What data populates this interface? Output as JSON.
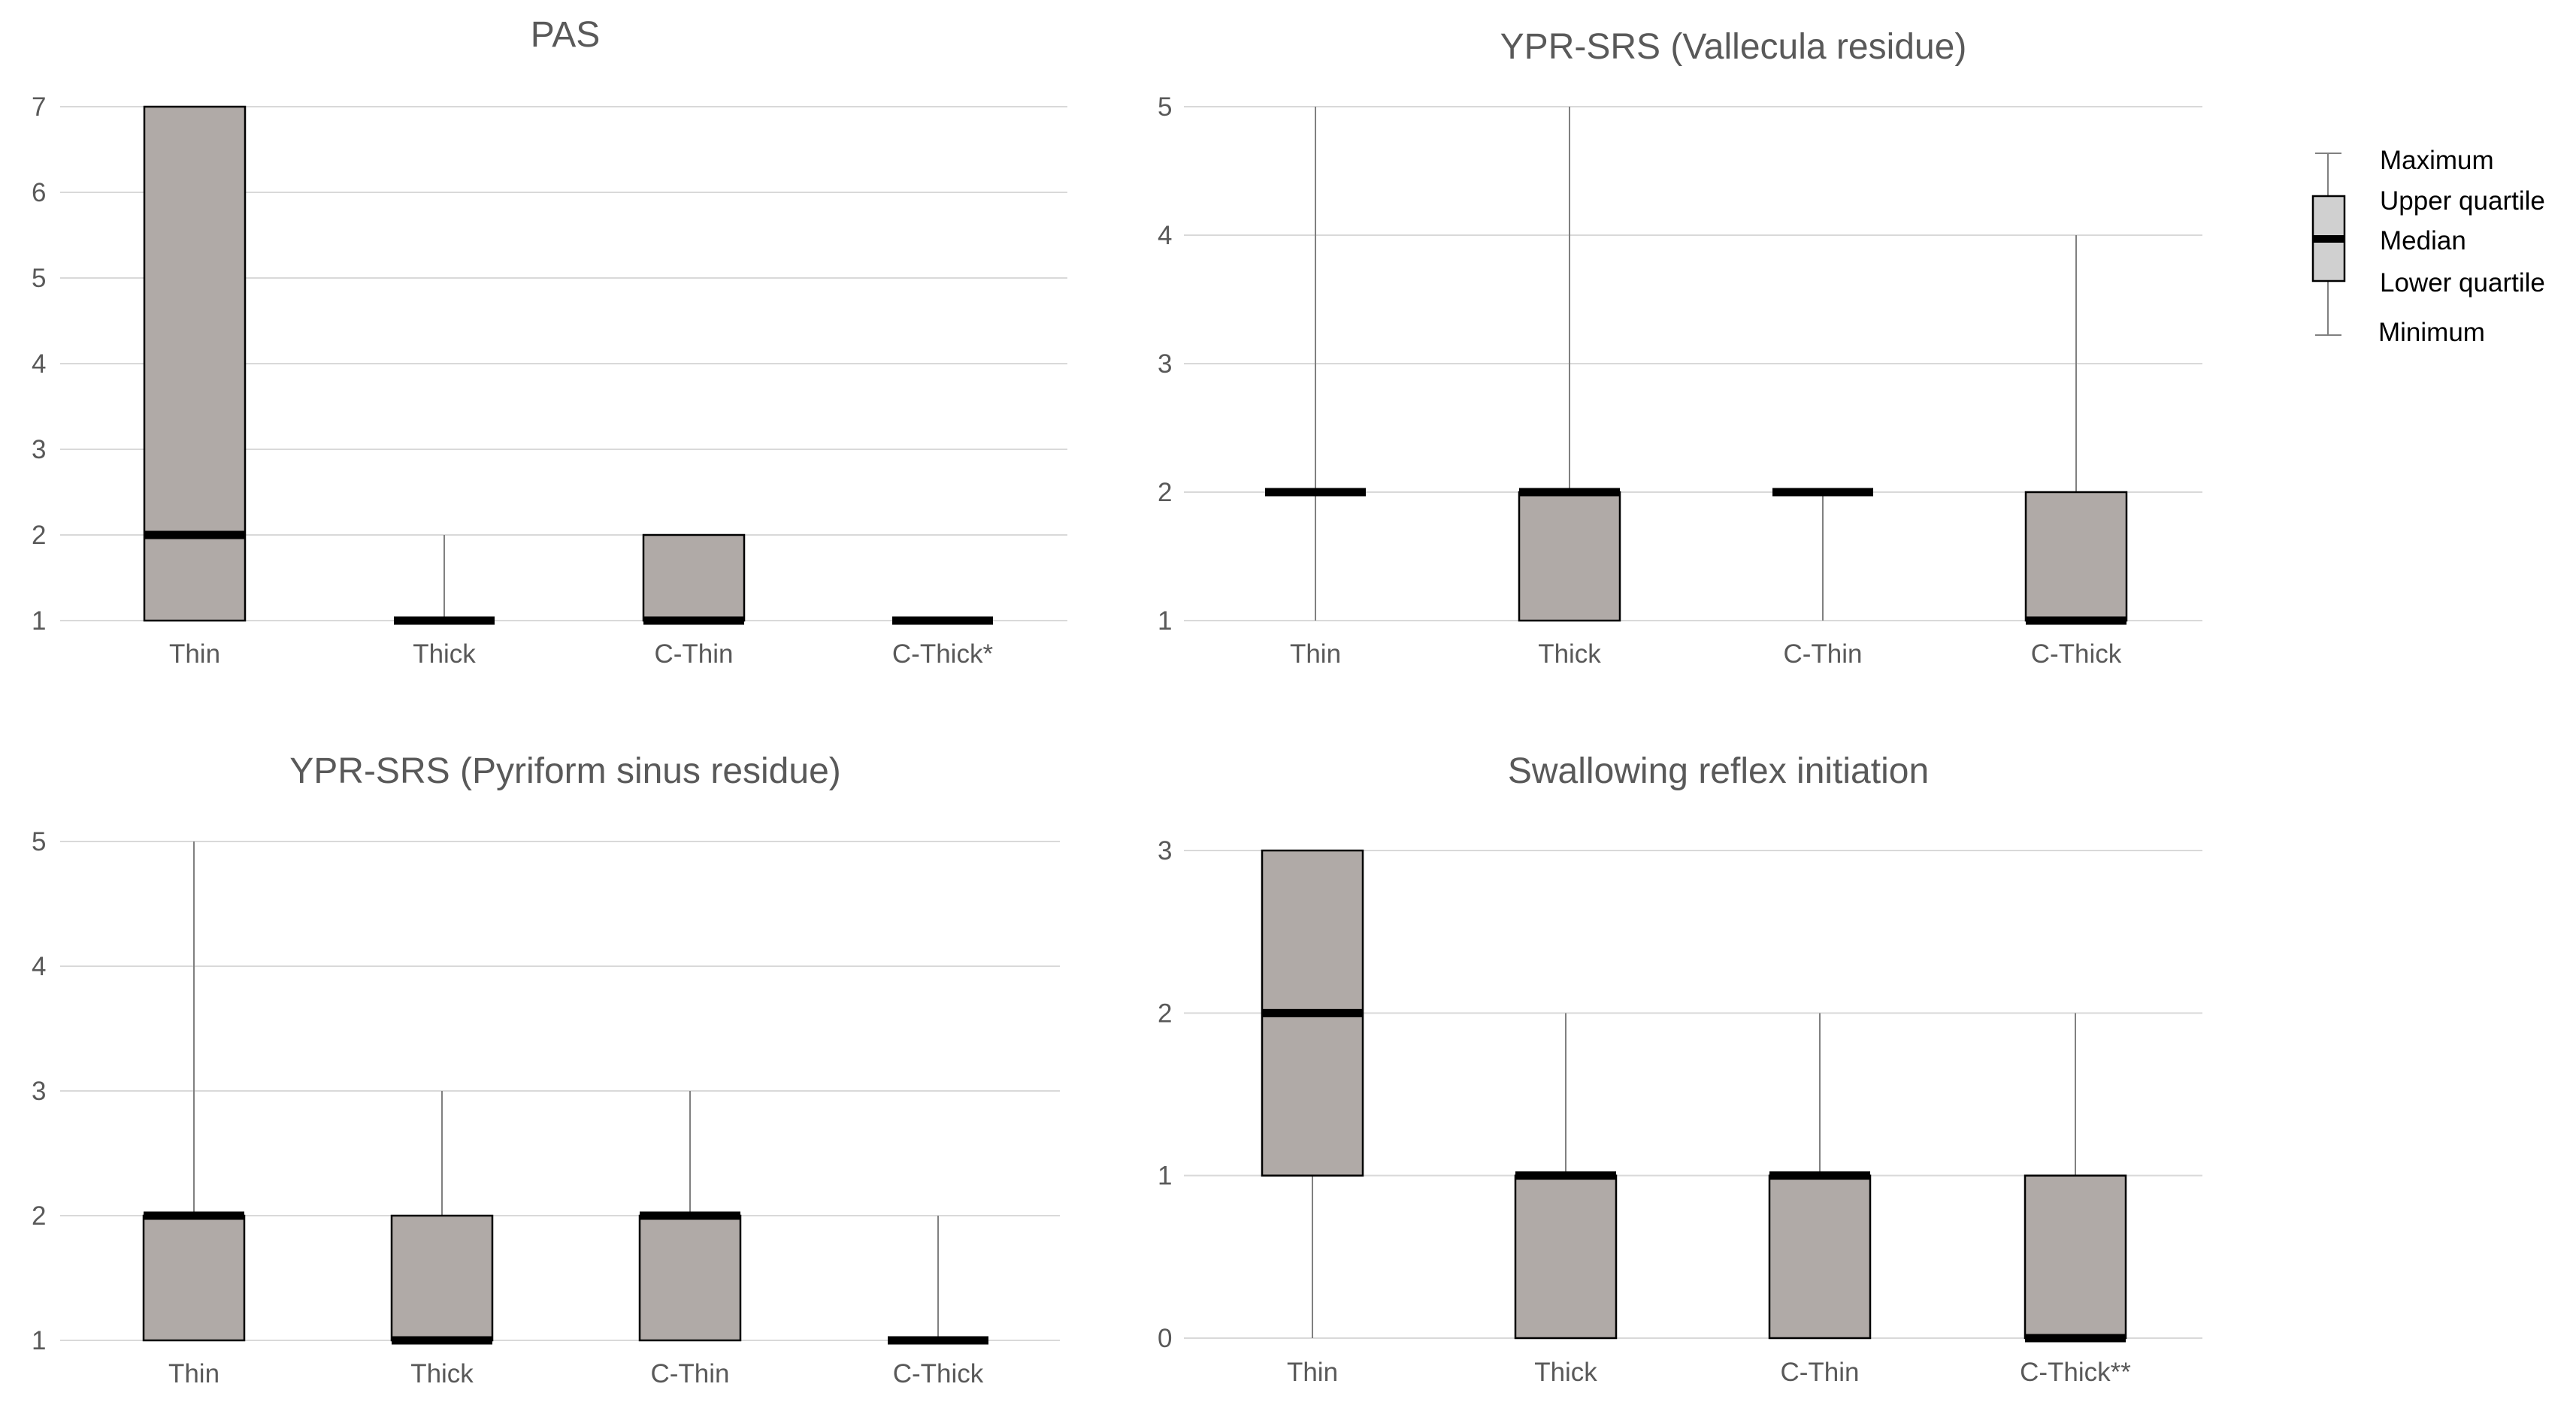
{
  "chart_data": [
    {
      "type": "box",
      "title": "PAS",
      "ylim": [
        1,
        7
      ],
      "yticks": [
        1,
        2,
        3,
        4,
        5,
        6,
        7
      ],
      "categories": [
        "Thin",
        "Thick",
        "C-Thin",
        "C-Thick*"
      ],
      "boxes": [
        {
          "min": 1,
          "q1": 1,
          "median": 2,
          "q3": 7,
          "max": 7
        },
        {
          "min": 1,
          "q1": 1,
          "median": 1,
          "q3": 1,
          "max": 2
        },
        {
          "min": 1,
          "q1": 1,
          "median": 1,
          "q3": 2,
          "max": 2
        },
        {
          "min": 1,
          "q1": 1,
          "median": 1,
          "q3": 1,
          "max": 1
        }
      ]
    },
    {
      "type": "box",
      "title": "YPR-SRS (Vallecula residue)",
      "ylim": [
        1,
        5
      ],
      "yticks": [
        1,
        2,
        3,
        4,
        5
      ],
      "categories": [
        "Thin",
        "Thick",
        "C-Thin",
        "C-Thick"
      ],
      "boxes": [
        {
          "min": 1,
          "q1": 2,
          "median": 2,
          "q3": 2,
          "max": 5
        },
        {
          "min": 1,
          "q1": 1,
          "median": 2,
          "q3": 2,
          "max": 5
        },
        {
          "min": 1,
          "q1": 2,
          "median": 2,
          "q3": 2,
          "max": 2
        },
        {
          "min": 1,
          "q1": 1,
          "median": 1,
          "q3": 2,
          "max": 4
        }
      ]
    },
    {
      "type": "box",
      "title": "YPR-SRS (Pyriform sinus residue)",
      "ylim": [
        1,
        5
      ],
      "yticks": [
        1,
        2,
        3,
        4,
        5
      ],
      "categories": [
        "Thin",
        "Thick",
        "C-Thin",
        "C-Thick"
      ],
      "boxes": [
        {
          "min": 1,
          "q1": 1,
          "median": 2,
          "q3": 2,
          "max": 5
        },
        {
          "min": 1,
          "q1": 1,
          "median": 1,
          "q3": 2,
          "max": 3
        },
        {
          "min": 1,
          "q1": 1,
          "median": 2,
          "q3": 2,
          "max": 3
        },
        {
          "min": 1,
          "q1": 1,
          "median": 1,
          "q3": 1,
          "max": 2
        }
      ]
    },
    {
      "type": "box",
      "title": "Swallowing reflex initiation",
      "ylim": [
        0,
        3
      ],
      "yticks": [
        0,
        1,
        2,
        3
      ],
      "categories": [
        "Thin",
        "Thick",
        "C-Thin",
        "C-Thick**"
      ],
      "boxes": [
        {
          "min": 0,
          "q1": 1,
          "median": 2,
          "q3": 3,
          "max": 3
        },
        {
          "min": 0,
          "q1": 0,
          "median": 1,
          "q3": 1,
          "max": 2
        },
        {
          "min": 0,
          "q1": 0,
          "median": 1,
          "q3": 1,
          "max": 2
        },
        {
          "min": 0,
          "q1": 0,
          "median": 0,
          "q3": 1,
          "max": 2
        }
      ]
    }
  ],
  "legend": {
    "maximum": "Maximum",
    "upper_quartile": "Upper quartile",
    "median": "Median",
    "lower_quartile": "Lower quartile",
    "minimum": "Minimum"
  },
  "colors": {
    "box_fill": "#b0aaa7",
    "legend_box_fill": "#d0d0d0",
    "median": "#000000",
    "whisker": "#808080",
    "grid": "#d9d9d9",
    "text": "#595959"
  }
}
